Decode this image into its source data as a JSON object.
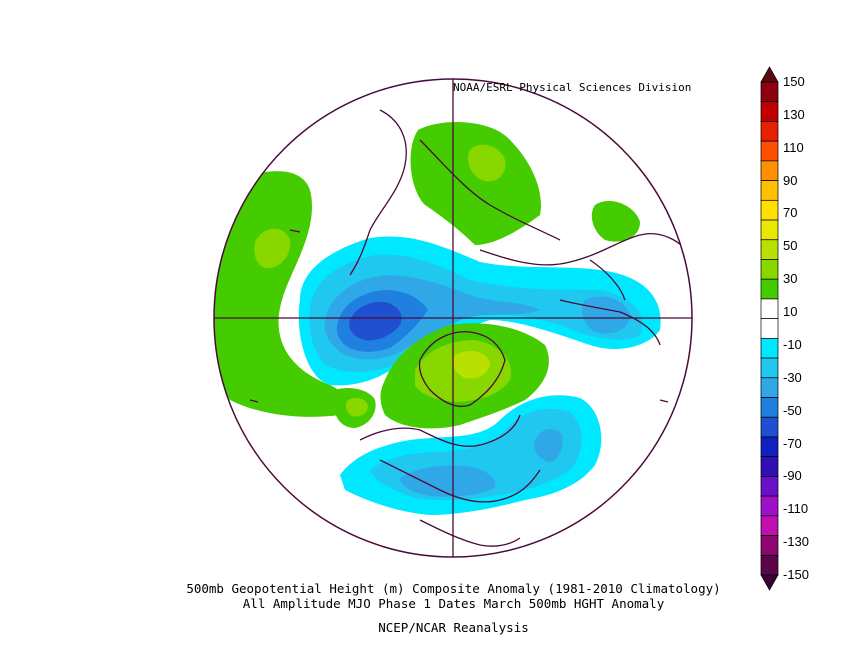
{
  "credit": "NOAA/ESRL Physical Sciences Division",
  "title_lines": [
    "500mb Geopotential Height (m) Composite Anomaly (1981-2010 Climatology)",
    "All Amplitude MJO Phase 1 Dates March 500mb HGHT Anomaly",
    "NCEP/NCAR Reanalysis"
  ],
  "colorbar": {
    "labels": [
      "150",
      "130",
      "110",
      "90",
      "70",
      "50",
      "30",
      "10",
      "-10",
      "-30",
      "-50",
      "-70",
      "-90",
      "-110",
      "-130",
      "-150"
    ],
    "colors": [
      "#5c0a12",
      "#8c0010",
      "#c00000",
      "#e82000",
      "#ff5000",
      "#ff9000",
      "#ffc000",
      "#ffe000",
      "#e8e800",
      "#b8e000",
      "#88d800",
      "#44cc00",
      "#ffffff",
      "#ffffff",
      "#00e8ff",
      "#20c8f0",
      "#30a8e8",
      "#2080e0",
      "#2050d0",
      "#1020c0",
      "#3010b0",
      "#6a10c8",
      "#a010c8",
      "#c010b0",
      "#8c0870",
      "#5c0448",
      "#3c0030"
    ]
  },
  "map": {
    "projection": "north-polar-stereographic",
    "colors": {
      "green_30": "#44cc00",
      "green_50": "#88d800",
      "yellow_70": "#b8e000",
      "cyan_10": "#00e8ff",
      "blue_30": "#20c8f0",
      "blue_50": "#30a8e8",
      "blue_70": "#2080e0",
      "blue_90": "#2050d0",
      "coast": "#4a0a3a"
    }
  }
}
